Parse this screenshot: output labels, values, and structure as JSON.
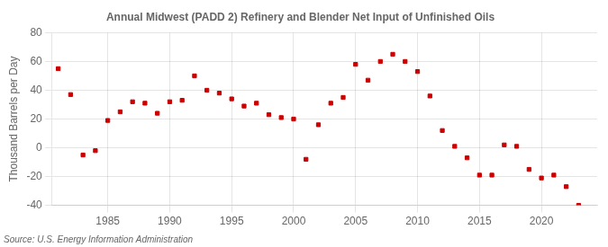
{
  "chart_data": {
    "type": "scatter",
    "title": "Annual Midwest (PADD 2) Refinery and Blender Net Input of Unfinished Oils",
    "ylabel": "Thousand Barrels per Day",
    "annotation": "Source: U.S. Energy Information Administration",
    "x": [
      1981,
      1982,
      1983,
      1984,
      1985,
      1986,
      1987,
      1988,
      1989,
      1990,
      1991,
      1992,
      1993,
      1994,
      1995,
      1996,
      1997,
      1998,
      1999,
      2000,
      2001,
      2002,
      2003,
      2004,
      2005,
      2006,
      2007,
      2008,
      2009,
      2010,
      2011,
      2012,
      2013,
      2014,
      2015,
      2016,
      2017,
      2018,
      2019,
      2020,
      2021,
      2022,
      2023
    ],
    "values": [
      55,
      37,
      -5,
      -2,
      19,
      25,
      32,
      31,
      24,
      32,
      33,
      50,
      40,
      38,
      34,
      29,
      31,
      23,
      21,
      20,
      -8,
      16,
      31,
      35,
      58,
      47,
      60,
      65,
      60,
      53,
      36,
      12,
      1,
      -7,
      -19,
      -19,
      2,
      1,
      -15,
      -21,
      -19,
      -27,
      -40
    ],
    "color": "#cc0000",
    "marker": "square",
    "xlim": [
      1980.5,
      2024.5
    ],
    "xticks": [
      1985,
      1990,
      1995,
      2000,
      2005,
      2010,
      2015,
      2020
    ],
    "ylim": [
      -40,
      80
    ],
    "yticks": [
      -40,
      -20,
      0,
      20,
      40,
      60,
      80
    ],
    "grid": true
  }
}
